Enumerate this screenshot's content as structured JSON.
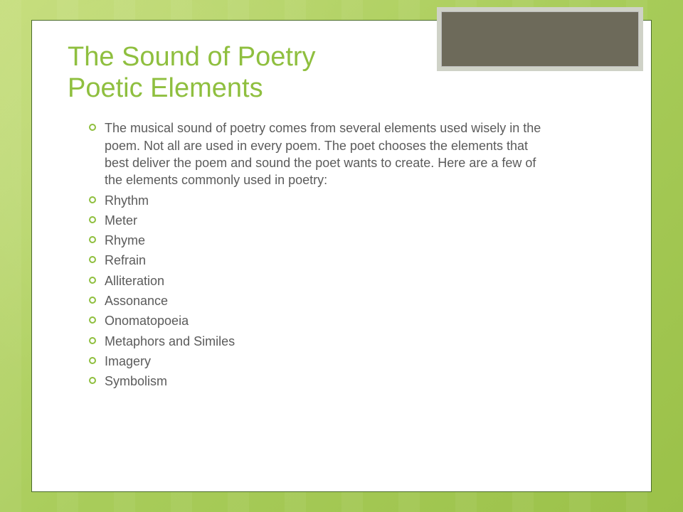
{
  "colors": {
    "accent": "#8fbf3f",
    "body_text": "#5b5b5b",
    "frame_border": "#4a6b2a",
    "corner_outer": "#cfd2c7",
    "corner_inner": "#6d6a5a",
    "background_gradient": [
      "#c5dd7a",
      "#a8cc5a",
      "#9bc149"
    ]
  },
  "typography": {
    "title_fontsize": 38,
    "body_fontsize": 18,
    "font_family": "Century Gothic"
  },
  "title_line1": "The Sound of Poetry",
  "title_line2": "Poetic Elements",
  "intro": "The musical sound of poetry comes from several elements used wisely in the poem. Not all are used in every poem. The poet chooses the elements that best deliver the poem and sound the poet wants to create. Here are a few of the elements commonly used in poetry:",
  "items": [
    "Rhythm",
    "Meter",
    "Rhyme",
    "Refrain",
    "Alliteration",
    "Assonance",
    "Onomatopoeia",
    "Metaphors and Similes",
    "Imagery",
    "Symbolism"
  ]
}
